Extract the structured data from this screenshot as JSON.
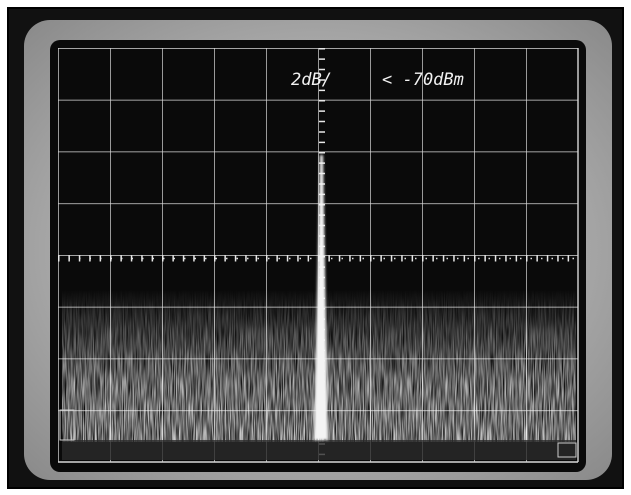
{
  "screen": {
    "scale": "2dB/",
    "reference": "< -70dBm"
  }
}
